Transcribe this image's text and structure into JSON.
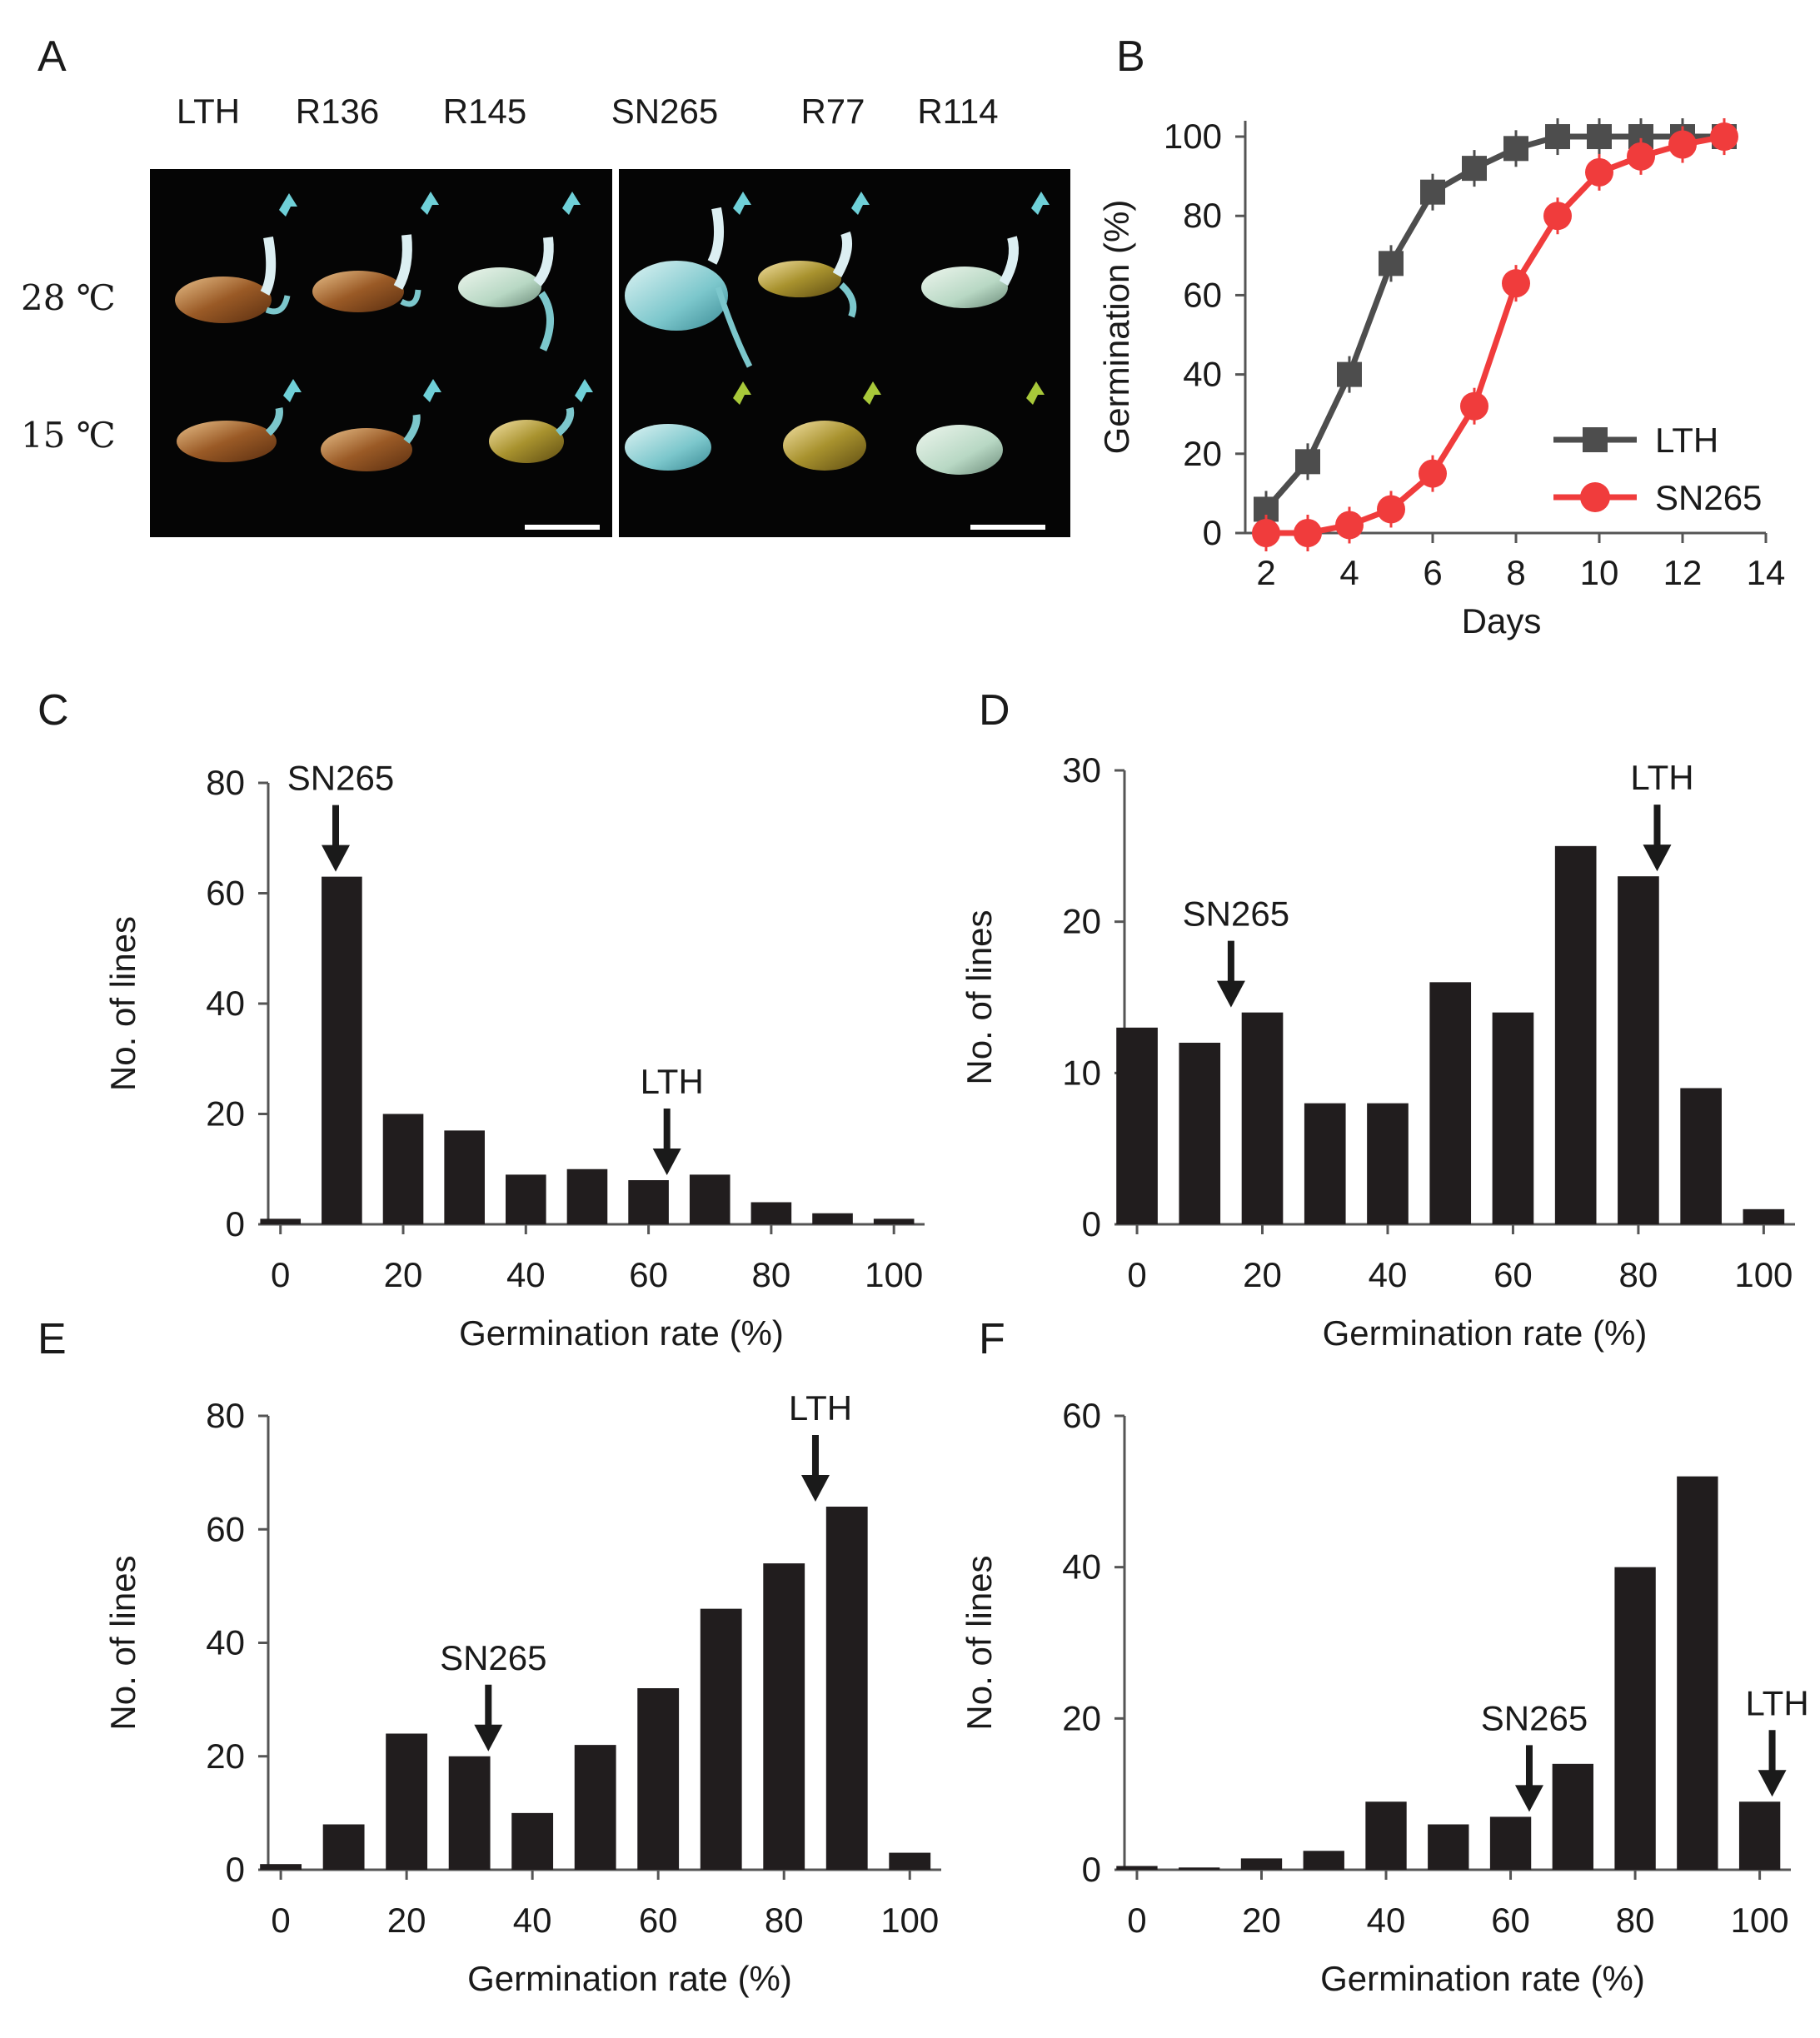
{
  "panels": {
    "A": {
      "letter": "A",
      "cultivars": [
        "LTH",
        "R136",
        "R145",
        "SN265",
        "R77",
        "R114"
      ],
      "conditions": [
        "28 ℃",
        "15 ℃"
      ],
      "photo_description": "germinated rice seeds on black background"
    },
    "B": {
      "letter": "B"
    },
    "C": {
      "letter": "C"
    },
    "D": {
      "letter": "D"
    },
    "E": {
      "letter": "E"
    },
    "F": {
      "letter": "F"
    }
  },
  "chart_data": [
    {
      "id": "B",
      "type": "line",
      "xlabel": "Days",
      "ylabel": "Germination (%)",
      "xlim": [
        1.5,
        14
      ],
      "ylim": [
        0,
        104
      ],
      "xticks": [
        2,
        4,
        6,
        8,
        10,
        12,
        14
      ],
      "yticks": [
        0,
        20,
        40,
        60,
        80,
        100
      ],
      "legend_position": "bottom-right",
      "series": [
        {
          "name": "LTH",
          "color": "#4d4d4d",
          "marker": "square",
          "x": [
            2,
            3,
            4,
            5,
            6,
            7,
            8,
            9,
            10,
            11,
            12,
            13
          ],
          "y": [
            6,
            18,
            40,
            68,
            86,
            92,
            97,
            100,
            100,
            100,
            100,
            100
          ]
        },
        {
          "name": "SN265",
          "color": "#f03c3c",
          "marker": "circle",
          "x": [
            2,
            3,
            4,
            5,
            6,
            7,
            8,
            9,
            10,
            11,
            12,
            13
          ],
          "y": [
            0,
            0,
            2,
            6,
            15,
            32,
            63,
            80,
            91,
            95,
            98,
            100
          ]
        }
      ]
    },
    {
      "id": "C",
      "type": "bar",
      "xlabel": "Germination rate (%)",
      "ylabel": "No. of lines",
      "xlim": [
        -2,
        105
      ],
      "ylim": [
        0,
        80
      ],
      "xticks": [
        0,
        20,
        40,
        60,
        80,
        100
      ],
      "yticks": [
        0,
        20,
        40,
        60,
        80
      ],
      "x": [
        0,
        10,
        20,
        30,
        40,
        50,
        60,
        70,
        80,
        90,
        100
      ],
      "values": [
        1,
        63,
        20,
        17,
        9,
        10,
        8,
        9,
        4,
        2,
        1
      ],
      "annotations": [
        {
          "text": "SN265",
          "x": 9
        },
        {
          "text": "LTH",
          "x": 63
        }
      ]
    },
    {
      "id": "D",
      "type": "bar",
      "xlabel": "Germination rate (%)",
      "ylabel": "No. of lines",
      "xlim": [
        -2,
        105
      ],
      "ylim": [
        0,
        30
      ],
      "xticks": [
        0,
        20,
        40,
        60,
        80,
        100
      ],
      "yticks": [
        0,
        10,
        20,
        30
      ],
      "x": [
        0,
        10,
        20,
        30,
        40,
        50,
        60,
        70,
        80,
        90,
        100
      ],
      "values": [
        13,
        12,
        14,
        8,
        8,
        16,
        14,
        25,
        23,
        9,
        1
      ],
      "annotations": [
        {
          "text": "SN265",
          "x": 15
        },
        {
          "text": "LTH",
          "x": 83
        }
      ]
    },
    {
      "id": "E",
      "type": "bar",
      "xlabel": "Germination rate (%)",
      "ylabel": "No. of lines",
      "xlim": [
        -2,
        105
      ],
      "ylim": [
        0,
        80
      ],
      "xticks": [
        0,
        20,
        40,
        60,
        80,
        100
      ],
      "yticks": [
        0,
        20,
        40,
        60,
        80
      ],
      "x": [
        0,
        10,
        20,
        30,
        40,
        50,
        60,
        70,
        80,
        90,
        100
      ],
      "values": [
        1,
        8,
        24,
        20,
        10,
        22,
        32,
        46,
        54,
        64,
        3
      ],
      "annotations": [
        {
          "text": "SN265",
          "x": 33
        },
        {
          "text": "LTH",
          "x": 85
        }
      ]
    },
    {
      "id": "F",
      "type": "bar",
      "xlabel": "Germination rate (%)",
      "ylabel": "No. of lines",
      "xlim": [
        -2,
        105
      ],
      "ylim": [
        0,
        60
      ],
      "xticks": [
        0,
        20,
        40,
        60,
        80,
        100
      ],
      "yticks": [
        0,
        20,
        40,
        60
      ],
      "x": [
        0,
        10,
        20,
        30,
        40,
        50,
        60,
        70,
        80,
        90,
        100
      ],
      "values": [
        0.5,
        0.3,
        1.5,
        2.5,
        9,
        6,
        7,
        14,
        40,
        52,
        9
      ],
      "annotations": [
        {
          "text": "SN265",
          "x": 63
        },
        {
          "text": "LTH",
          "x": 102
        }
      ]
    }
  ]
}
